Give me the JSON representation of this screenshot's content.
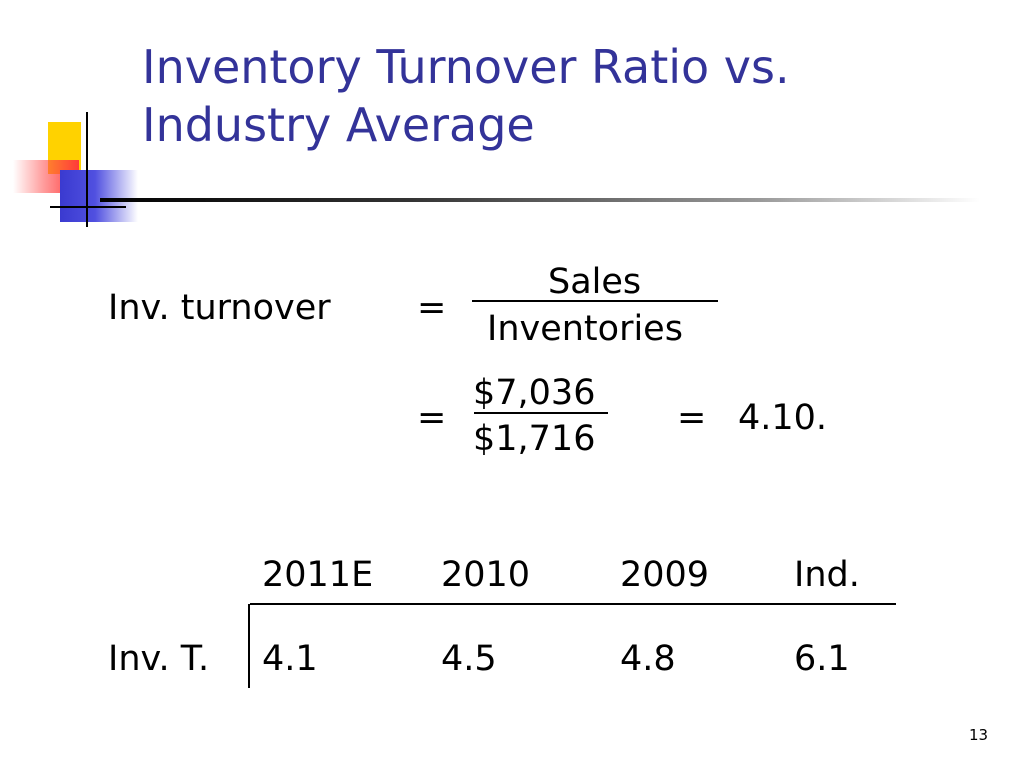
{
  "slide": {
    "title_line1": "Inventory Turnover Ratio vs.",
    "title_line2": "Industry Average",
    "page_number": "13"
  },
  "formula": {
    "label": "Inv. turnover",
    "equals": "=",
    "numerator": "Sales",
    "denominator": "Inventories",
    "values_numerator": "$7,036",
    "values_denominator": "$1,716",
    "result": "4.10."
  },
  "table": {
    "headers": [
      "2011E",
      "2010",
      "2009",
      "Ind."
    ],
    "row_label": "Inv. T.",
    "values": [
      "4.1",
      "4.5",
      "4.8",
      "6.1"
    ]
  }
}
